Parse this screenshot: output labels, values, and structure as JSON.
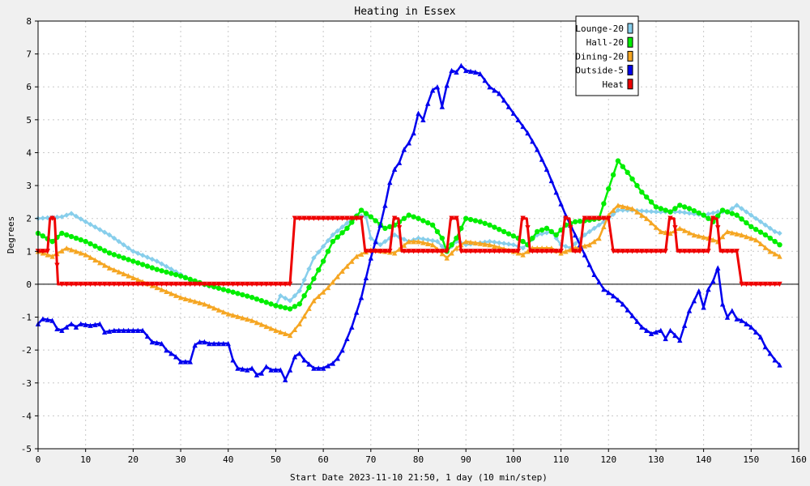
{
  "chart_data": {
    "type": "line",
    "title": "Heating in Essex",
    "xlabel": "Start Date 2023-11-10 21:50, 1 day (10 min/step)",
    "ylabel": "Degrees",
    "xlim": [
      0,
      160
    ],
    "ylim": [
      -5,
      8
    ],
    "xticks": [
      0,
      10,
      20,
      30,
      40,
      50,
      60,
      70,
      80,
      90,
      100,
      110,
      120,
      130,
      140,
      150,
      160
    ],
    "yticks": [
      -5,
      -4,
      -3,
      -2,
      -1,
      0,
      1,
      2,
      3,
      4,
      5,
      6,
      7,
      8
    ],
    "grid": true,
    "legend_position": "top-right",
    "series": [
      {
        "name": "Lounge-20",
        "color": "#87ceeb",
        "marker": "diamond",
        "points": [
          [
            0,
            2.0
          ],
          [
            5,
            2.05
          ],
          [
            7,
            2.15
          ],
          [
            10,
            1.9
          ],
          [
            15,
            1.5
          ],
          [
            20,
            1.0
          ],
          [
            25,
            0.7
          ],
          [
            30,
            0.3
          ],
          [
            33,
            0.05
          ],
          [
            40,
            -0.2
          ],
          [
            45,
            -0.4
          ],
          [
            50,
            -0.65
          ],
          [
            51,
            -0.35
          ],
          [
            53,
            -0.5
          ],
          [
            55,
            -0.2
          ],
          [
            58,
            0.8
          ],
          [
            62,
            1.5
          ],
          [
            67,
            2.1
          ],
          [
            69,
            2.05
          ],
          [
            70,
            1.4
          ],
          [
            72,
            1.2
          ],
          [
            75,
            1.5
          ],
          [
            78,
            1.3
          ],
          [
            80,
            1.4
          ],
          [
            84,
            1.3
          ],
          [
            86,
            1.0
          ],
          [
            88,
            1.3
          ],
          [
            90,
            1.2
          ],
          [
            95,
            1.3
          ],
          [
            100,
            1.2
          ],
          [
            102,
            1.1
          ],
          [
            105,
            1.5
          ],
          [
            108,
            1.6
          ],
          [
            110,
            1.2
          ],
          [
            112,
            1.1
          ],
          [
            115,
            1.5
          ],
          [
            120,
            2.0
          ],
          [
            122,
            2.25
          ],
          [
            125,
            2.25
          ],
          [
            130,
            2.2
          ],
          [
            135,
            2.2
          ],
          [
            140,
            2.1
          ],
          [
            143,
            2.2
          ],
          [
            145,
            2.2
          ],
          [
            147,
            2.4
          ],
          [
            150,
            2.1
          ],
          [
            155,
            1.6
          ],
          [
            156,
            1.55
          ]
        ]
      },
      {
        "name": "Hall-20",
        "color": "#00ee00",
        "marker": "circle",
        "points": [
          [
            0,
            1.55
          ],
          [
            3,
            1.3
          ],
          [
            5,
            1.55
          ],
          [
            10,
            1.3
          ],
          [
            15,
            0.95
          ],
          [
            20,
            0.7
          ],
          [
            25,
            0.45
          ],
          [
            30,
            0.25
          ],
          [
            35,
            0.0
          ],
          [
            40,
            -0.2
          ],
          [
            45,
            -0.4
          ],
          [
            50,
            -0.65
          ],
          [
            53,
            -0.75
          ],
          [
            55,
            -0.6
          ],
          [
            57,
            -0.1
          ],
          [
            60,
            0.7
          ],
          [
            62,
            1.3
          ],
          [
            65,
            1.7
          ],
          [
            68,
            2.25
          ],
          [
            70,
            2.05
          ],
          [
            73,
            1.7
          ],
          [
            75,
            1.8
          ],
          [
            78,
            2.1
          ],
          [
            80,
            2.0
          ],
          [
            83,
            1.8
          ],
          [
            85,
            1.4
          ],
          [
            86,
            1.0
          ],
          [
            88,
            1.4
          ],
          [
            90,
            2.0
          ],
          [
            93,
            1.9
          ],
          [
            95,
            1.8
          ],
          [
            98,
            1.6
          ],
          [
            101,
            1.4
          ],
          [
            103,
            1.2
          ],
          [
            105,
            1.6
          ],
          [
            107,
            1.7
          ],
          [
            109,
            1.5
          ],
          [
            111,
            1.8
          ],
          [
            113,
            1.9
          ],
          [
            116,
            1.95
          ],
          [
            118,
            2.0
          ],
          [
            120,
            2.9
          ],
          [
            122,
            3.75
          ],
          [
            124,
            3.4
          ],
          [
            127,
            2.8
          ],
          [
            130,
            2.35
          ],
          [
            133,
            2.2
          ],
          [
            135,
            2.4
          ],
          [
            137,
            2.3
          ],
          [
            140,
            2.1
          ],
          [
            142,
            1.9
          ],
          [
            144,
            2.25
          ],
          [
            147,
            2.1
          ],
          [
            150,
            1.75
          ],
          [
            153,
            1.5
          ],
          [
            156,
            1.2
          ]
        ]
      },
      {
        "name": "Dining-20",
        "color": "#f5a623",
        "marker": "triangle",
        "points": [
          [
            0,
            1.0
          ],
          [
            3,
            0.85
          ],
          [
            6,
            1.1
          ],
          [
            10,
            0.9
          ],
          [
            15,
            0.5
          ],
          [
            20,
            0.2
          ],
          [
            25,
            -0.1
          ],
          [
            30,
            -0.4
          ],
          [
            35,
            -0.6
          ],
          [
            40,
            -0.9
          ],
          [
            45,
            -1.1
          ],
          [
            50,
            -1.4
          ],
          [
            53,
            -1.55
          ],
          [
            55,
            -1.2
          ],
          [
            58,
            -0.5
          ],
          [
            61,
            -0.1
          ],
          [
            64,
            0.4
          ],
          [
            67,
            0.85
          ],
          [
            70,
            1.05
          ],
          [
            73,
            1.0
          ],
          [
            75,
            0.95
          ],
          [
            78,
            1.3
          ],
          [
            80,
            1.3
          ],
          [
            83,
            1.2
          ],
          [
            86,
            0.8
          ],
          [
            88,
            1.1
          ],
          [
            90,
            1.3
          ],
          [
            95,
            1.2
          ],
          [
            100,
            1.0
          ],
          [
            102,
            0.9
          ],
          [
            104,
            1.1
          ],
          [
            108,
            1.1
          ],
          [
            110,
            0.95
          ],
          [
            113,
            1.1
          ],
          [
            116,
            1.2
          ],
          [
            118,
            1.4
          ],
          [
            120,
            2.1
          ],
          [
            122,
            2.4
          ],
          [
            125,
            2.3
          ],
          [
            128,
            2.0
          ],
          [
            131,
            1.6
          ],
          [
            133,
            1.55
          ],
          [
            135,
            1.7
          ],
          [
            138,
            1.5
          ],
          [
            141,
            1.4
          ],
          [
            143,
            1.3
          ],
          [
            145,
            1.6
          ],
          [
            148,
            1.5
          ],
          [
            151,
            1.35
          ],
          [
            154,
            1.0
          ],
          [
            156,
            0.85
          ]
        ]
      },
      {
        "name": "Outside-5",
        "color": "#0000ee",
        "marker": "triangle",
        "points": [
          [
            0,
            -1.2
          ],
          [
            1,
            -1.05
          ],
          [
            3,
            -1.1
          ],
          [
            4,
            -1.35
          ],
          [
            5,
            -1.4
          ],
          [
            6,
            -1.3
          ],
          [
            7,
            -1.2
          ],
          [
            8,
            -1.3
          ],
          [
            9,
            -1.2
          ],
          [
            11,
            -1.25
          ],
          [
            13,
            -1.2
          ],
          [
            14,
            -1.45
          ],
          [
            16,
            -1.4
          ],
          [
            20,
            -1.4
          ],
          [
            22,
            -1.4
          ],
          [
            24,
            -1.75
          ],
          [
            26,
            -1.8
          ],
          [
            27,
            -2.0
          ],
          [
            29,
            -2.2
          ],
          [
            30,
            -2.35
          ],
          [
            32,
            -2.35
          ],
          [
            33,
            -1.85
          ],
          [
            34,
            -1.75
          ],
          [
            35,
            -1.75
          ],
          [
            36,
            -1.8
          ],
          [
            40,
            -1.8
          ],
          [
            41,
            -2.3
          ],
          [
            42,
            -2.55
          ],
          [
            44,
            -2.6
          ],
          [
            45,
            -2.55
          ],
          [
            46,
            -2.75
          ],
          [
            47,
            -2.7
          ],
          [
            48,
            -2.5
          ],
          [
            49,
            -2.6
          ],
          [
            51,
            -2.6
          ],
          [
            52,
            -2.9
          ],
          [
            53,
            -2.6
          ],
          [
            54,
            -2.2
          ],
          [
            55,
            -2.1
          ],
          [
            56,
            -2.3
          ],
          [
            58,
            -2.55
          ],
          [
            60,
            -2.55
          ],
          [
            62,
            -2.4
          ],
          [
            63,
            -2.25
          ],
          [
            64,
            -2.0
          ],
          [
            66,
            -1.3
          ],
          [
            68,
            -0.4
          ],
          [
            70,
            0.8
          ],
          [
            71,
            1.3
          ],
          [
            72,
            1.8
          ],
          [
            73,
            2.4
          ],
          [
            74,
            3.1
          ],
          [
            75,
            3.5
          ],
          [
            76,
            3.7
          ],
          [
            77,
            4.1
          ],
          [
            78,
            4.3
          ],
          [
            79,
            4.6
          ],
          [
            80,
            5.2
          ],
          [
            81,
            5.0
          ],
          [
            82,
            5.5
          ],
          [
            83,
            5.9
          ],
          [
            84,
            6.0
          ],
          [
            85,
            5.4
          ],
          [
            86,
            6.05
          ],
          [
            87,
            6.5
          ],
          [
            88,
            6.45
          ],
          [
            89,
            6.65
          ],
          [
            90,
            6.5
          ],
          [
            92,
            6.45
          ],
          [
            93,
            6.4
          ],
          [
            95,
            6.0
          ],
          [
            97,
            5.8
          ],
          [
            99,
            5.4
          ],
          [
            101,
            5.0
          ],
          [
            103,
            4.6
          ],
          [
            105,
            4.1
          ],
          [
            107,
            3.5
          ],
          [
            109,
            2.8
          ],
          [
            111,
            2.1
          ],
          [
            113,
            1.5
          ],
          [
            115,
            0.9
          ],
          [
            117,
            0.3
          ],
          [
            119,
            -0.15
          ],
          [
            121,
            -0.35
          ],
          [
            123,
            -0.6
          ],
          [
            125,
            -0.95
          ],
          [
            127,
            -1.3
          ],
          [
            129,
            -1.5
          ],
          [
            131,
            -1.4
          ],
          [
            132,
            -1.65
          ],
          [
            133,
            -1.4
          ],
          [
            135,
            -1.7
          ],
          [
            137,
            -0.8
          ],
          [
            138,
            -0.5
          ],
          [
            139,
            -0.2
          ],
          [
            140,
            -0.7
          ],
          [
            141,
            -0.15
          ],
          [
            142,
            0.1
          ],
          [
            143,
            0.5
          ],
          [
            144,
            -0.6
          ],
          [
            145,
            -1.0
          ],
          [
            146,
            -0.8
          ],
          [
            147,
            -1.05
          ],
          [
            148,
            -1.1
          ],
          [
            150,
            -1.3
          ],
          [
            152,
            -1.6
          ],
          [
            153,
            -1.9
          ],
          [
            155,
            -2.3
          ],
          [
            156,
            -2.45
          ]
        ]
      },
      {
        "name": "Heat",
        "color": "#ee0000",
        "marker": "triangle-down",
        "points": [
          [
            0,
            1.0
          ],
          [
            2,
            1.0
          ],
          [
            2.5,
            2.0
          ],
          [
            3.5,
            2.0
          ],
          [
            4.2,
            0.0
          ],
          [
            53,
            0.0
          ],
          [
            54,
            2.0
          ],
          [
            68,
            2.0
          ],
          [
            68.8,
            1.0
          ],
          [
            74,
            1.0
          ],
          [
            74.8,
            2.0
          ],
          [
            75.8,
            2.0
          ],
          [
            76.5,
            1.0
          ],
          [
            86,
            1.0
          ],
          [
            86.8,
            2.0
          ],
          [
            88.2,
            2.0
          ],
          [
            89,
            1.0
          ],
          [
            101,
            1.0
          ],
          [
            101.8,
            2.0
          ],
          [
            102.8,
            2.0
          ],
          [
            103.5,
            1.0
          ],
          [
            110,
            1.0
          ],
          [
            110.8,
            2.0
          ],
          [
            111.8,
            2.0
          ],
          [
            112.5,
            1.0
          ],
          [
            114,
            1.0
          ],
          [
            114.8,
            2.0
          ],
          [
            120,
            2.0
          ],
          [
            121,
            1.0
          ],
          [
            132,
            1.0
          ],
          [
            132.8,
            2.0
          ],
          [
            133.8,
            2.0
          ],
          [
            134.5,
            1.0
          ],
          [
            141,
            1.0
          ],
          [
            141.8,
            2.0
          ],
          [
            142.8,
            2.0
          ],
          [
            143.5,
            1.0
          ],
          [
            147,
            1.0
          ],
          [
            148,
            0.0
          ],
          [
            156,
            0.0
          ]
        ]
      }
    ]
  }
}
